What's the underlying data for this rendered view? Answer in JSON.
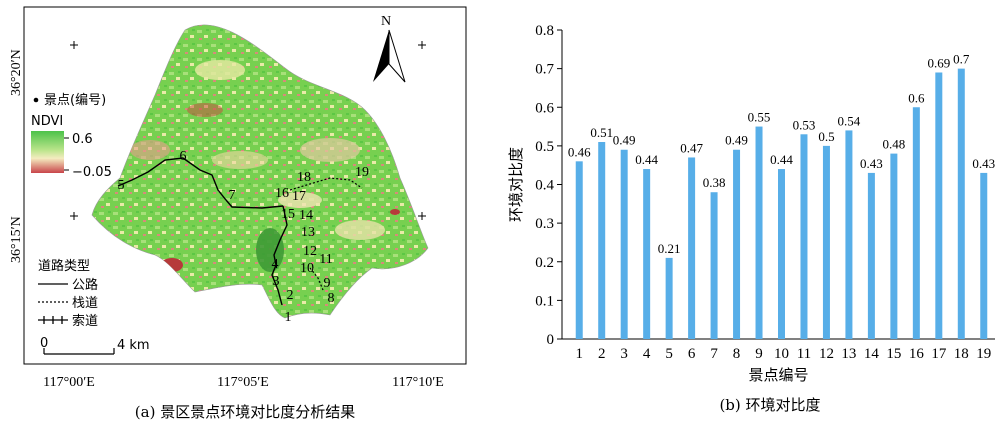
{
  "figure_a": {
    "caption": "(a) 景区景点环境对比度分析结果",
    "north_label": "N",
    "lat_labels": [
      "36°20′N",
      "36°15′N"
    ],
    "lon_labels": [
      "117°00′E",
      "117°05′E",
      "117°10′E"
    ],
    "legend": {
      "spot_label": "景点(编号)",
      "ndvi_title": "NDVI",
      "ndvi_max": "0.6",
      "ndvi_min": "−0.05",
      "road_type_title": "道路类型",
      "road_items": [
        "公路",
        "栈道",
        "索道"
      ]
    },
    "scalebar": {
      "start": "0",
      "end": "4 km"
    },
    "spot_numbers": [
      "1",
      "2",
      "3",
      "4",
      "5",
      "6",
      "7",
      "8",
      "9",
      "10",
      "11",
      "12",
      "13",
      "14",
      "15",
      "16",
      "17",
      "18",
      "19"
    ],
    "colors": {
      "green": "#6fd14a",
      "pale": "#f3f0b8",
      "red": "#cf4a4a"
    }
  },
  "figure_b": {
    "caption": "(b) 环境对比度",
    "color": "#57aee8"
  },
  "chart_data": {
    "type": "bar",
    "categories": [
      "1",
      "2",
      "3",
      "4",
      "5",
      "6",
      "7",
      "8",
      "9",
      "10",
      "11",
      "12",
      "13",
      "14",
      "15",
      "16",
      "17",
      "18",
      "19"
    ],
    "values": [
      0.46,
      0.51,
      0.49,
      0.44,
      0.21,
      0.47,
      0.38,
      0.49,
      0.55,
      0.44,
      0.53,
      0.5,
      0.54,
      0.43,
      0.48,
      0.6,
      0.69,
      0.7,
      0.43
    ],
    "value_labels": [
      "0.46",
      "0.51",
      "0.49",
      "0.44",
      "0.21",
      "0.47",
      "0.38",
      "0.49",
      "0.55",
      "0.44",
      "0.53",
      "0.5",
      "0.54",
      "0.43",
      "0.48",
      "0.6",
      "0.69",
      "0.7",
      "0.43"
    ],
    "xlabel": "景点编号",
    "ylabel": "环境对比度",
    "ylim": [
      0,
      0.8
    ],
    "yticks": [
      "0",
      "0.1",
      "0.2",
      "0.3",
      "0.4",
      "0.5",
      "0.6",
      "0.7",
      "0.8"
    ],
    "grid": false
  }
}
